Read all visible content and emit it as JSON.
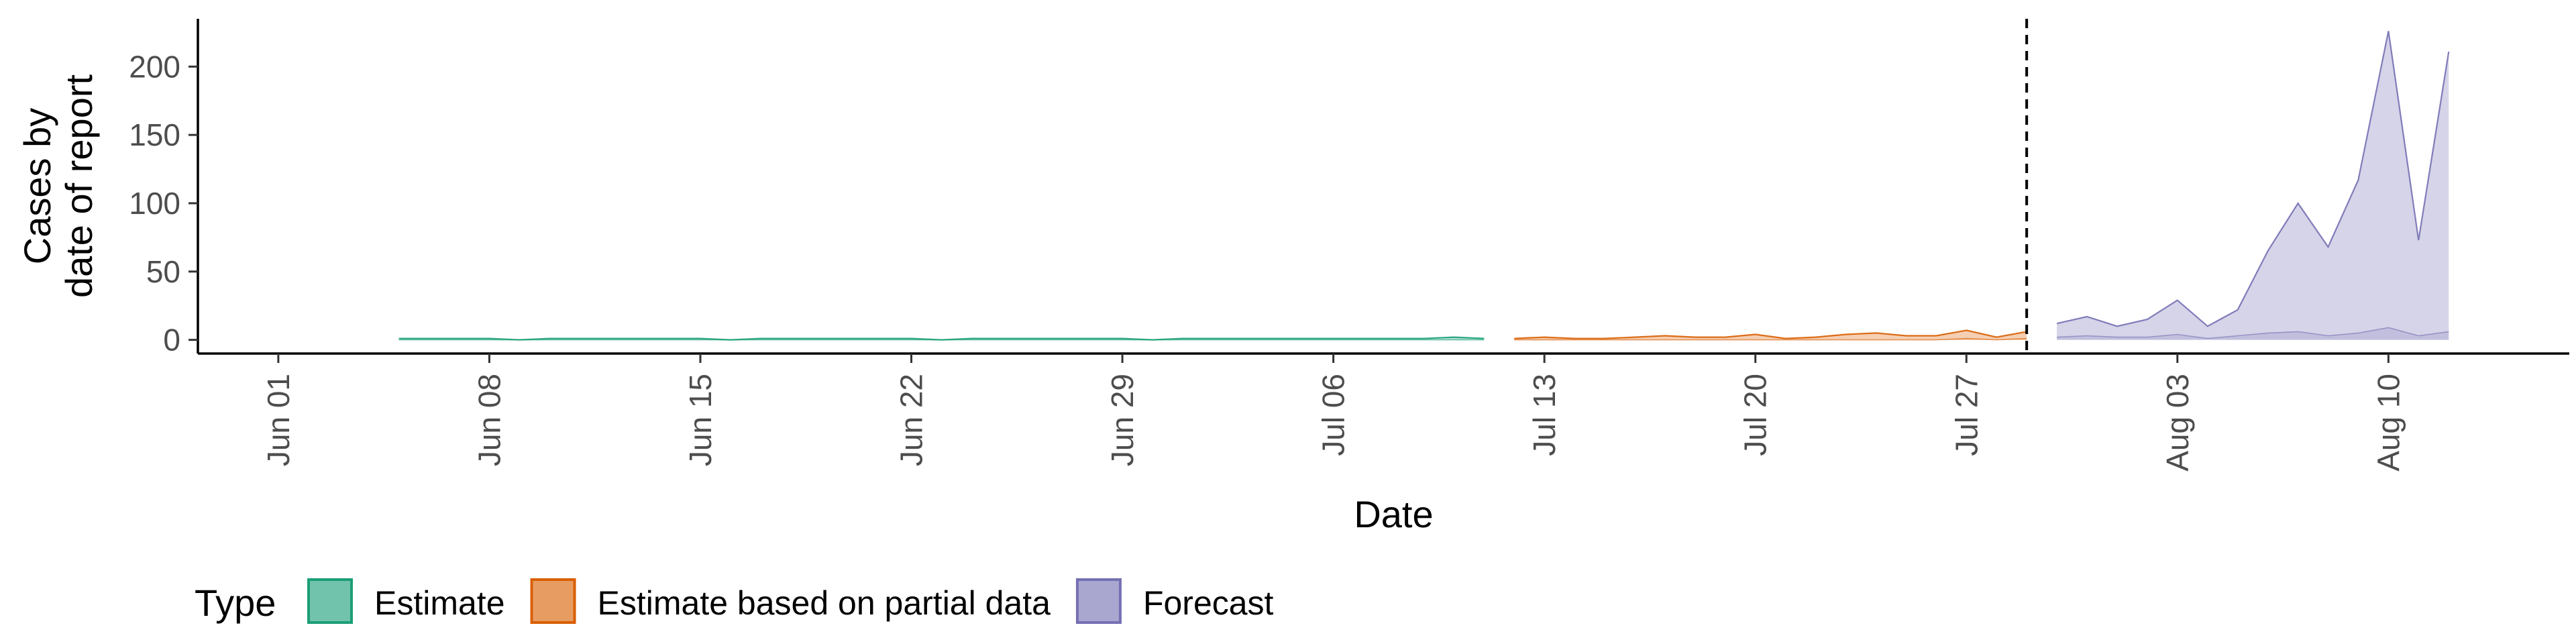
{
  "chart_data": {
    "type": "area",
    "xlabel": "Date",
    "ylabel_lines": [
      "Cases by",
      "date of report"
    ],
    "ylim": [
      -10,
      235
    ],
    "y_ticks": [
      0,
      50,
      100,
      150,
      200
    ],
    "xlim": [
      "2020-05-30",
      "2020-08-16"
    ],
    "x_ticks": [
      {
        "date": "2020-06-01",
        "label": "Jun 01"
      },
      {
        "date": "2020-06-08",
        "label": "Jun 08"
      },
      {
        "date": "2020-06-15",
        "label": "Jun 15"
      },
      {
        "date": "2020-06-22",
        "label": "Jun 22"
      },
      {
        "date": "2020-06-29",
        "label": "Jun 29"
      },
      {
        "date": "2020-07-06",
        "label": "Jul 06"
      },
      {
        "date": "2020-07-13",
        "label": "Jul 13"
      },
      {
        "date": "2020-07-20",
        "label": "Jul 20"
      },
      {
        "date": "2020-07-27",
        "label": "Jul 27"
      },
      {
        "date": "2020-08-03",
        "label": "Aug 03"
      },
      {
        "date": "2020-08-10",
        "label": "Aug 10"
      }
    ],
    "vline_date": "2020-07-29",
    "grid": false,
    "legend": {
      "title": "Type",
      "position": "bottom",
      "entries": [
        {
          "label": "Estimate",
          "fill": "#1b9e77"
        },
        {
          "label": "Estimate based on partial data",
          "fill": "#d95f02"
        },
        {
          "label": "Forecast",
          "fill": "#7570b3"
        }
      ]
    },
    "series": [
      {
        "type": "Estimate",
        "fill": "#1b9e77",
        "stroke": "#1b9e77",
        "x": [
          "2020-06-05",
          "2020-06-06",
          "2020-06-07",
          "2020-06-08",
          "2020-06-09",
          "2020-06-10",
          "2020-06-11",
          "2020-06-12",
          "2020-06-13",
          "2020-06-14",
          "2020-06-15",
          "2020-06-16",
          "2020-06-17",
          "2020-06-18",
          "2020-06-19",
          "2020-06-20",
          "2020-06-21",
          "2020-06-22",
          "2020-06-23",
          "2020-06-24",
          "2020-06-25",
          "2020-06-26",
          "2020-06-27",
          "2020-06-28",
          "2020-06-29",
          "2020-06-30",
          "2020-07-01",
          "2020-07-02",
          "2020-07-03",
          "2020-07-04",
          "2020-07-05",
          "2020-07-06",
          "2020-07-07",
          "2020-07-08",
          "2020-07-09",
          "2020-07-10",
          "2020-07-11"
        ],
        "lower": [
          0,
          0,
          0,
          0,
          0,
          0,
          0,
          0,
          0,
          0,
          0,
          0,
          0,
          0,
          0,
          0,
          0,
          0,
          0,
          0,
          0,
          0,
          0,
          0,
          0,
          0,
          0,
          0,
          0,
          0,
          0,
          0,
          0,
          0,
          0,
          0,
          0
        ],
        "upper": [
          1,
          1,
          1,
          1,
          0,
          1,
          1,
          1,
          1,
          1,
          1,
          0,
          1,
          1,
          1,
          1,
          1,
          1,
          0,
          1,
          1,
          1,
          1,
          1,
          1,
          0,
          1,
          1,
          1,
          1,
          1,
          1,
          1,
          1,
          1,
          2,
          1
        ]
      },
      {
        "type": "Estimate based on partial data",
        "fill": "#d95f02",
        "stroke": "#d95f02",
        "x": [
          "2020-07-12",
          "2020-07-13",
          "2020-07-14",
          "2020-07-15",
          "2020-07-16",
          "2020-07-17",
          "2020-07-18",
          "2020-07-19",
          "2020-07-20",
          "2020-07-21",
          "2020-07-22",
          "2020-07-23",
          "2020-07-24",
          "2020-07-25",
          "2020-07-26",
          "2020-07-27",
          "2020-07-28",
          "2020-07-29"
        ],
        "lower": [
          0,
          0,
          0,
          0,
          0,
          0,
          0,
          0,
          0,
          0,
          0,
          0,
          0,
          0,
          0,
          1,
          0,
          1
        ],
        "upper": [
          1,
          2,
          1,
          1,
          2,
          3,
          2,
          2,
          4,
          1,
          2,
          4,
          5,
          3,
          3,
          7,
          2,
          6
        ]
      },
      {
        "type": "Forecast",
        "fill": "#7570b3",
        "stroke": "#7570b3",
        "x": [
          "2020-07-30",
          "2020-07-31",
          "2020-08-01",
          "2020-08-02",
          "2020-08-03",
          "2020-08-04",
          "2020-08-05",
          "2020-08-06",
          "2020-08-07",
          "2020-08-08",
          "2020-08-09",
          "2020-08-10",
          "2020-08-11",
          "2020-08-12"
        ],
        "lower": [
          2,
          3,
          2,
          2,
          4,
          1,
          3,
          5,
          6,
          3,
          5,
          9,
          3,
          6
        ],
        "upper": [
          12,
          17,
          10,
          15,
          29,
          10,
          22,
          65,
          100,
          68,
          117,
          226,
          73,
          211
        ]
      }
    ]
  }
}
